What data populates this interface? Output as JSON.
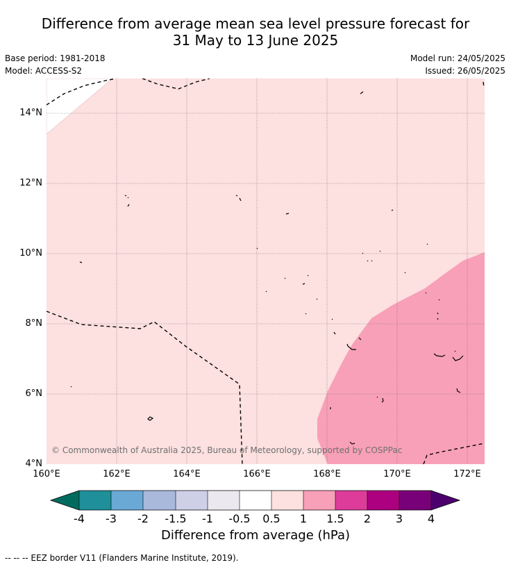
{
  "title_line1": "Difference from average mean sea level pressure forecast for",
  "title_line2": "31 May to 13 June 2025",
  "base_period": "Base period: 1981-2018",
  "model": "Model: ACCESS-S2",
  "model_run": "Model run: 24/05/2025",
  "issued": "Issued: 26/05/2025",
  "lat_labels": [
    "14°N",
    "12°N",
    "10°N",
    "8°N",
    "6°N",
    "4°N"
  ],
  "lon_labels": [
    "160°E",
    "162°E",
    "164°E",
    "166°E",
    "168°E",
    "170°E",
    "172°E"
  ],
  "copyright": "© Commonwealth of Australia 2025, Bureau of Meteorology, supported by COSPPac",
  "colorbar": {
    "labels": [
      "-4",
      "-3",
      "-2",
      "-1.5",
      "-1",
      "-0.5",
      "0.5",
      "1",
      "1.5",
      "2",
      "3",
      "4"
    ],
    "colors": [
      "#006b5e",
      "#1f8f9a",
      "#6aa9d6",
      "#a8b9dc",
      "#cdd0e6",
      "#ebe9ef",
      "#ffffff",
      "#fde0e0",
      "#f8a0b8",
      "#dd3c9b",
      "#ad0080",
      "#780078",
      "#4b006e"
    ],
    "title": "Difference from average (hPa)"
  },
  "map_colors": {
    "light_pink": "#fde0e0",
    "medium_pink": "#f8a0b8"
  },
  "footnote": "--  --  -- EEZ border V11 (Flanders Marine Institute, 2019)."
}
